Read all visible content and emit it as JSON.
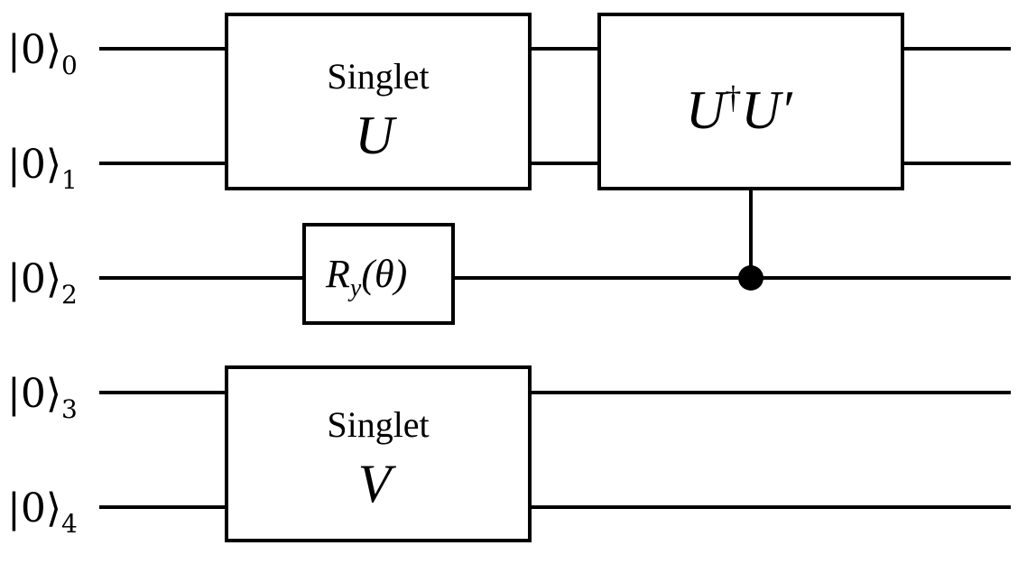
{
  "qubits": [
    {
      "ket": "|0⟩",
      "index": "0"
    },
    {
      "ket": "|0⟩",
      "index": "1"
    },
    {
      "ket": "|0⟩",
      "index": "2"
    },
    {
      "ket": "|0⟩",
      "index": "3"
    },
    {
      "ket": "|0⟩",
      "index": "4"
    }
  ],
  "gates": {
    "singlet_u": {
      "caption": "Singlet",
      "symbol": "U"
    },
    "ry": {
      "label": "R",
      "subscript": "y",
      "argument": "(θ)"
    },
    "controlled_u": {
      "base": "U",
      "dagger": "†",
      "second": "U′"
    },
    "singlet_v": {
      "caption": "Singlet",
      "symbol": "V"
    }
  }
}
